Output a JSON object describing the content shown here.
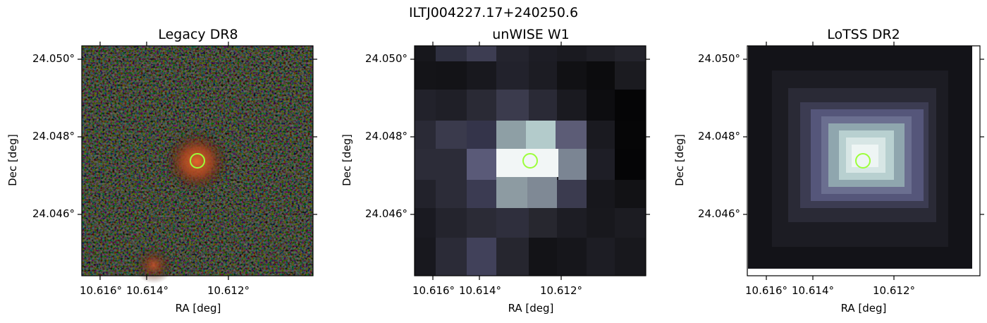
{
  "figure": {
    "suptitle": "ILTJ004227.17+240250.6"
  },
  "panels": [
    {
      "title": "Legacy DR8",
      "xlabel": "RA [deg]",
      "ylabel": "Dec [deg]",
      "xticks": [
        "10.616°",
        "10.614°",
        "10.612°"
      ],
      "yticks": [
        "24.050°",
        "24.048°",
        "24.046°"
      ],
      "image": "optical-color-cutout"
    },
    {
      "title": "unWISE W1",
      "xlabel": "RA [deg]",
      "ylabel": "Dec [deg]",
      "xticks": [
        "10.616°",
        "10.614°",
        "10.612°"
      ],
      "yticks": [
        "24.050°",
        "24.048°",
        "24.046°"
      ],
      "image": "infrared-grayscale-cutout"
    },
    {
      "title": "LoTSS DR2",
      "xlabel": "RA [deg]",
      "ylabel": "Dec [deg]",
      "xticks": [
        "10.616°",
        "10.614°",
        "10.612°"
      ],
      "yticks": [
        "24.050°",
        "24.048°",
        "24.046°"
      ],
      "image": "radio-grayscale-cutout"
    }
  ],
  "colors": {
    "marker": "#9cff3a",
    "frame": "#000000"
  }
}
